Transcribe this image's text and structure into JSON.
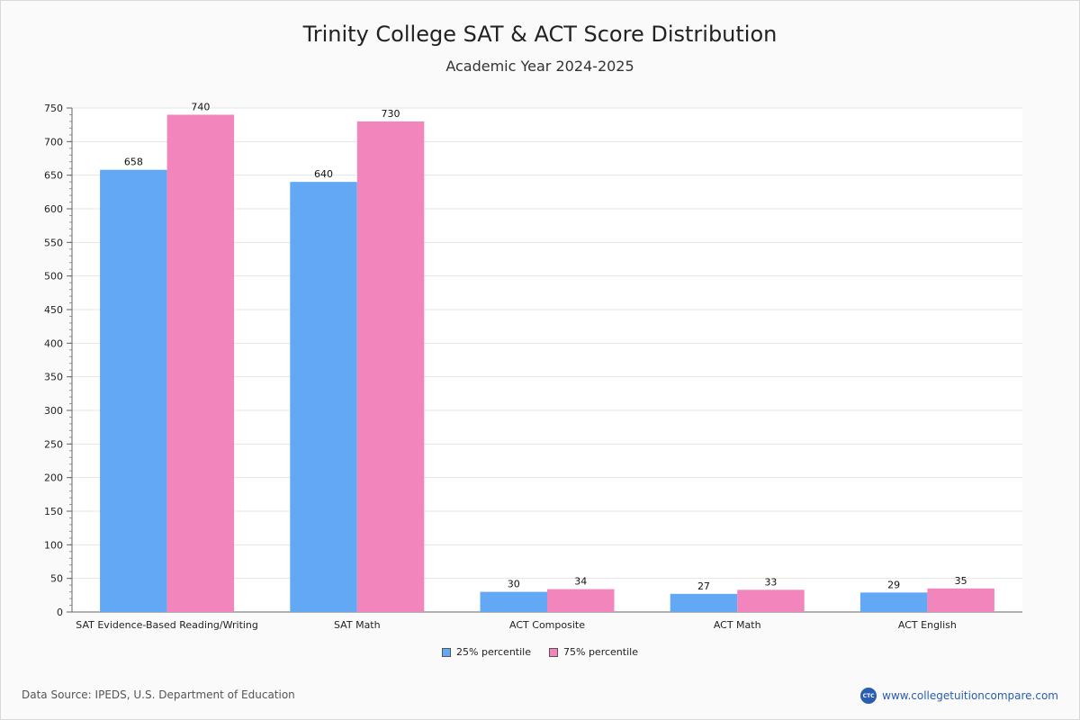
{
  "header": {
    "title": "Trinity College SAT & ACT Score Distribution",
    "subtitle": "Academic Year 2024-2025"
  },
  "chart_data": {
    "type": "bar",
    "categories": [
      "SAT Evidence-Based Reading/Writing",
      "SAT Math",
      "ACT Composite",
      "ACT Math",
      "ACT English"
    ],
    "series": [
      {
        "name": "25% percentile",
        "values": [
          658,
          640,
          30,
          27,
          29
        ],
        "color": "#62a8f4"
      },
      {
        "name": "75% percentile",
        "values": [
          740,
          730,
          34,
          33,
          35
        ],
        "color": "#f285bc"
      }
    ],
    "yticks": [
      0,
      50,
      100,
      150,
      200,
      250,
      300,
      350,
      400,
      450,
      500,
      550,
      600,
      650,
      700,
      750
    ],
    "ylim": [
      0,
      750
    ],
    "grid": true,
    "legend_position": "bottom-center"
  },
  "footer": {
    "source": "Data Source: IPEDS, U.S. Department of Education",
    "brand_logo": "CTC",
    "brand_url": "www.collegetuitioncompare.com"
  },
  "colors": {
    "series_25": "#62a8f4",
    "series_75": "#f285bc",
    "brand": "#2a5db0"
  }
}
